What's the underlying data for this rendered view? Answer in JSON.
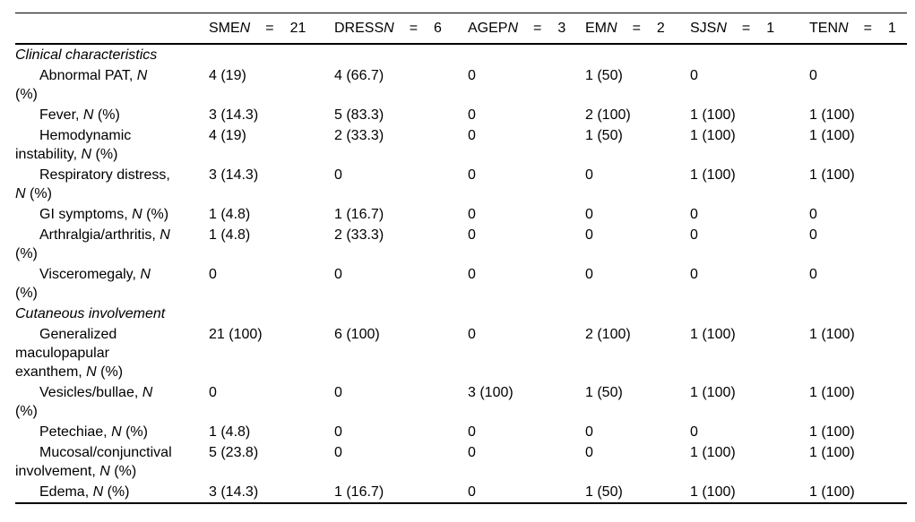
{
  "table": {
    "header": {
      "row_label_column": "",
      "columns": [
        {
          "group": "SME",
          "n": "N",
          "eq": "=",
          "count": "21"
        },
        {
          "group": "DRESS",
          "n": "N",
          "eq": "=",
          "count": "6"
        },
        {
          "group": "AGEP",
          "n": "N",
          "eq": "=",
          "count": "3"
        },
        {
          "group": "EM",
          "n": "N",
          "eq": "=",
          "count": "2"
        },
        {
          "group": "SJS",
          "n": "N",
          "eq": "=",
          "count": "1"
        },
        {
          "group": "TEN",
          "n": "N",
          "eq": "=",
          "count": "1"
        }
      ]
    },
    "rows": [
      {
        "type": "section",
        "label": "Clinical characteristics"
      },
      {
        "type": "item",
        "label": "Abnormal PAT, N (%)",
        "label_lines": [
          {
            "pre": "Abnormal PAT, ",
            "n": "N",
            "post": ""
          },
          {
            "pre": "(%)",
            "n": "",
            "post": ""
          }
        ],
        "values": [
          "4 (19)",
          "4 (66.7)",
          "0",
          "1 (50)",
          "0",
          "0"
        ]
      },
      {
        "type": "item",
        "label": "Fever, N (%)",
        "label_lines": [
          {
            "pre": "Fever, ",
            "n": "N",
            "post": " (%)"
          }
        ],
        "values": [
          "3 (14.3)",
          "5 (83.3)",
          "0",
          "2 (100)",
          "1 (100)",
          "1 (100)"
        ]
      },
      {
        "type": "item",
        "label": "Hemodynamic instability, N (%)",
        "label_lines": [
          {
            "pre": "Hemodynamic",
            "n": "",
            "post": ""
          },
          {
            "pre": "instability, ",
            "n": "N",
            "post": " (%)"
          }
        ],
        "values": [
          "4 (19)",
          "2 (33.3)",
          "0",
          "1 (50)",
          "1 (100)",
          "1 (100)"
        ]
      },
      {
        "type": "item",
        "label": "Respiratory distress, N (%)",
        "label_lines": [
          {
            "pre": "Respiratory distress,",
            "n": "",
            "post": ""
          },
          {
            "pre": "",
            "n": "N",
            "post": " (%)"
          }
        ],
        "values": [
          "3 (14.3)",
          "0",
          "0",
          "0",
          "1 (100)",
          "1 (100)"
        ]
      },
      {
        "type": "item",
        "label": "GI symptoms, N (%)",
        "label_lines": [
          {
            "pre": "GI symptoms, ",
            "n": "N",
            "post": " (%)"
          }
        ],
        "values": [
          "1 (4.8)",
          "1 (16.7)",
          "0",
          "0",
          "0",
          "0"
        ]
      },
      {
        "type": "item",
        "label": "Arthralgia/arthritis, N (%)",
        "label_lines": [
          {
            "pre": "Arthralgia/arthritis, ",
            "n": "N",
            "post": ""
          },
          {
            "pre": "(%)",
            "n": "",
            "post": ""
          }
        ],
        "values": [
          "1 (4.8)",
          "2 (33.3)",
          "0",
          "0",
          "0",
          "0"
        ]
      },
      {
        "type": "item",
        "label": "Visceromegaly, N (%)",
        "label_lines": [
          {
            "pre": "Visceromegaly, ",
            "n": "N",
            "post": ""
          },
          {
            "pre": "(%)",
            "n": "",
            "post": ""
          }
        ],
        "values": [
          "0",
          "0",
          "0",
          "0",
          "0",
          "0"
        ]
      },
      {
        "type": "section",
        "label": "Cutaneous involvement"
      },
      {
        "type": "item",
        "label": "Generalized maculopapular exanthem, N (%)",
        "label_lines": [
          {
            "pre": "Generalized",
            "n": "",
            "post": ""
          },
          {
            "pre": "maculopapular",
            "n": "",
            "post": ""
          },
          {
            "pre": "exanthem, ",
            "n": "N",
            "post": " (%)"
          }
        ],
        "values": [
          "21 (100)",
          "6 (100)",
          "0",
          "2 (100)",
          "1 (100)",
          "1 (100)"
        ]
      },
      {
        "type": "item",
        "label": "Vesicles/bullae, N (%)",
        "label_lines": [
          {
            "pre": "Vesicles/bullae, ",
            "n": "N",
            "post": ""
          },
          {
            "pre": "(%)",
            "n": "",
            "post": ""
          }
        ],
        "values": [
          "0",
          "0",
          "3 (100)",
          "1 (50)",
          "1 (100)",
          "1 (100)"
        ]
      },
      {
        "type": "item",
        "label": "Petechiae, N (%)",
        "label_lines": [
          {
            "pre": "Petechiae, ",
            "n": "N",
            "post": " (%)"
          }
        ],
        "values": [
          "1 (4.8)",
          "0",
          "0",
          "0",
          "0",
          "1 (100)"
        ]
      },
      {
        "type": "item",
        "label": "Mucosal/conjunctival involvement, N (%)",
        "label_lines": [
          {
            "pre": "Mucosal/conjunctival",
            "n": "",
            "post": ""
          },
          {
            "pre": "involvement, ",
            "n": "N",
            "post": " (%)"
          }
        ],
        "values": [
          "5 (23.8)",
          "0",
          "0",
          "0",
          "1 (100)",
          "1 (100)"
        ]
      },
      {
        "type": "item",
        "label": "Edema, N (%)",
        "label_lines": [
          {
            "pre": "Edema, ",
            "n": "N",
            "post": " (%)"
          }
        ],
        "values": [
          "3 (14.3)",
          "1 (16.7)",
          "0",
          "1 (50)",
          "1 (100)",
          "1 (100)"
        ]
      }
    ]
  }
}
